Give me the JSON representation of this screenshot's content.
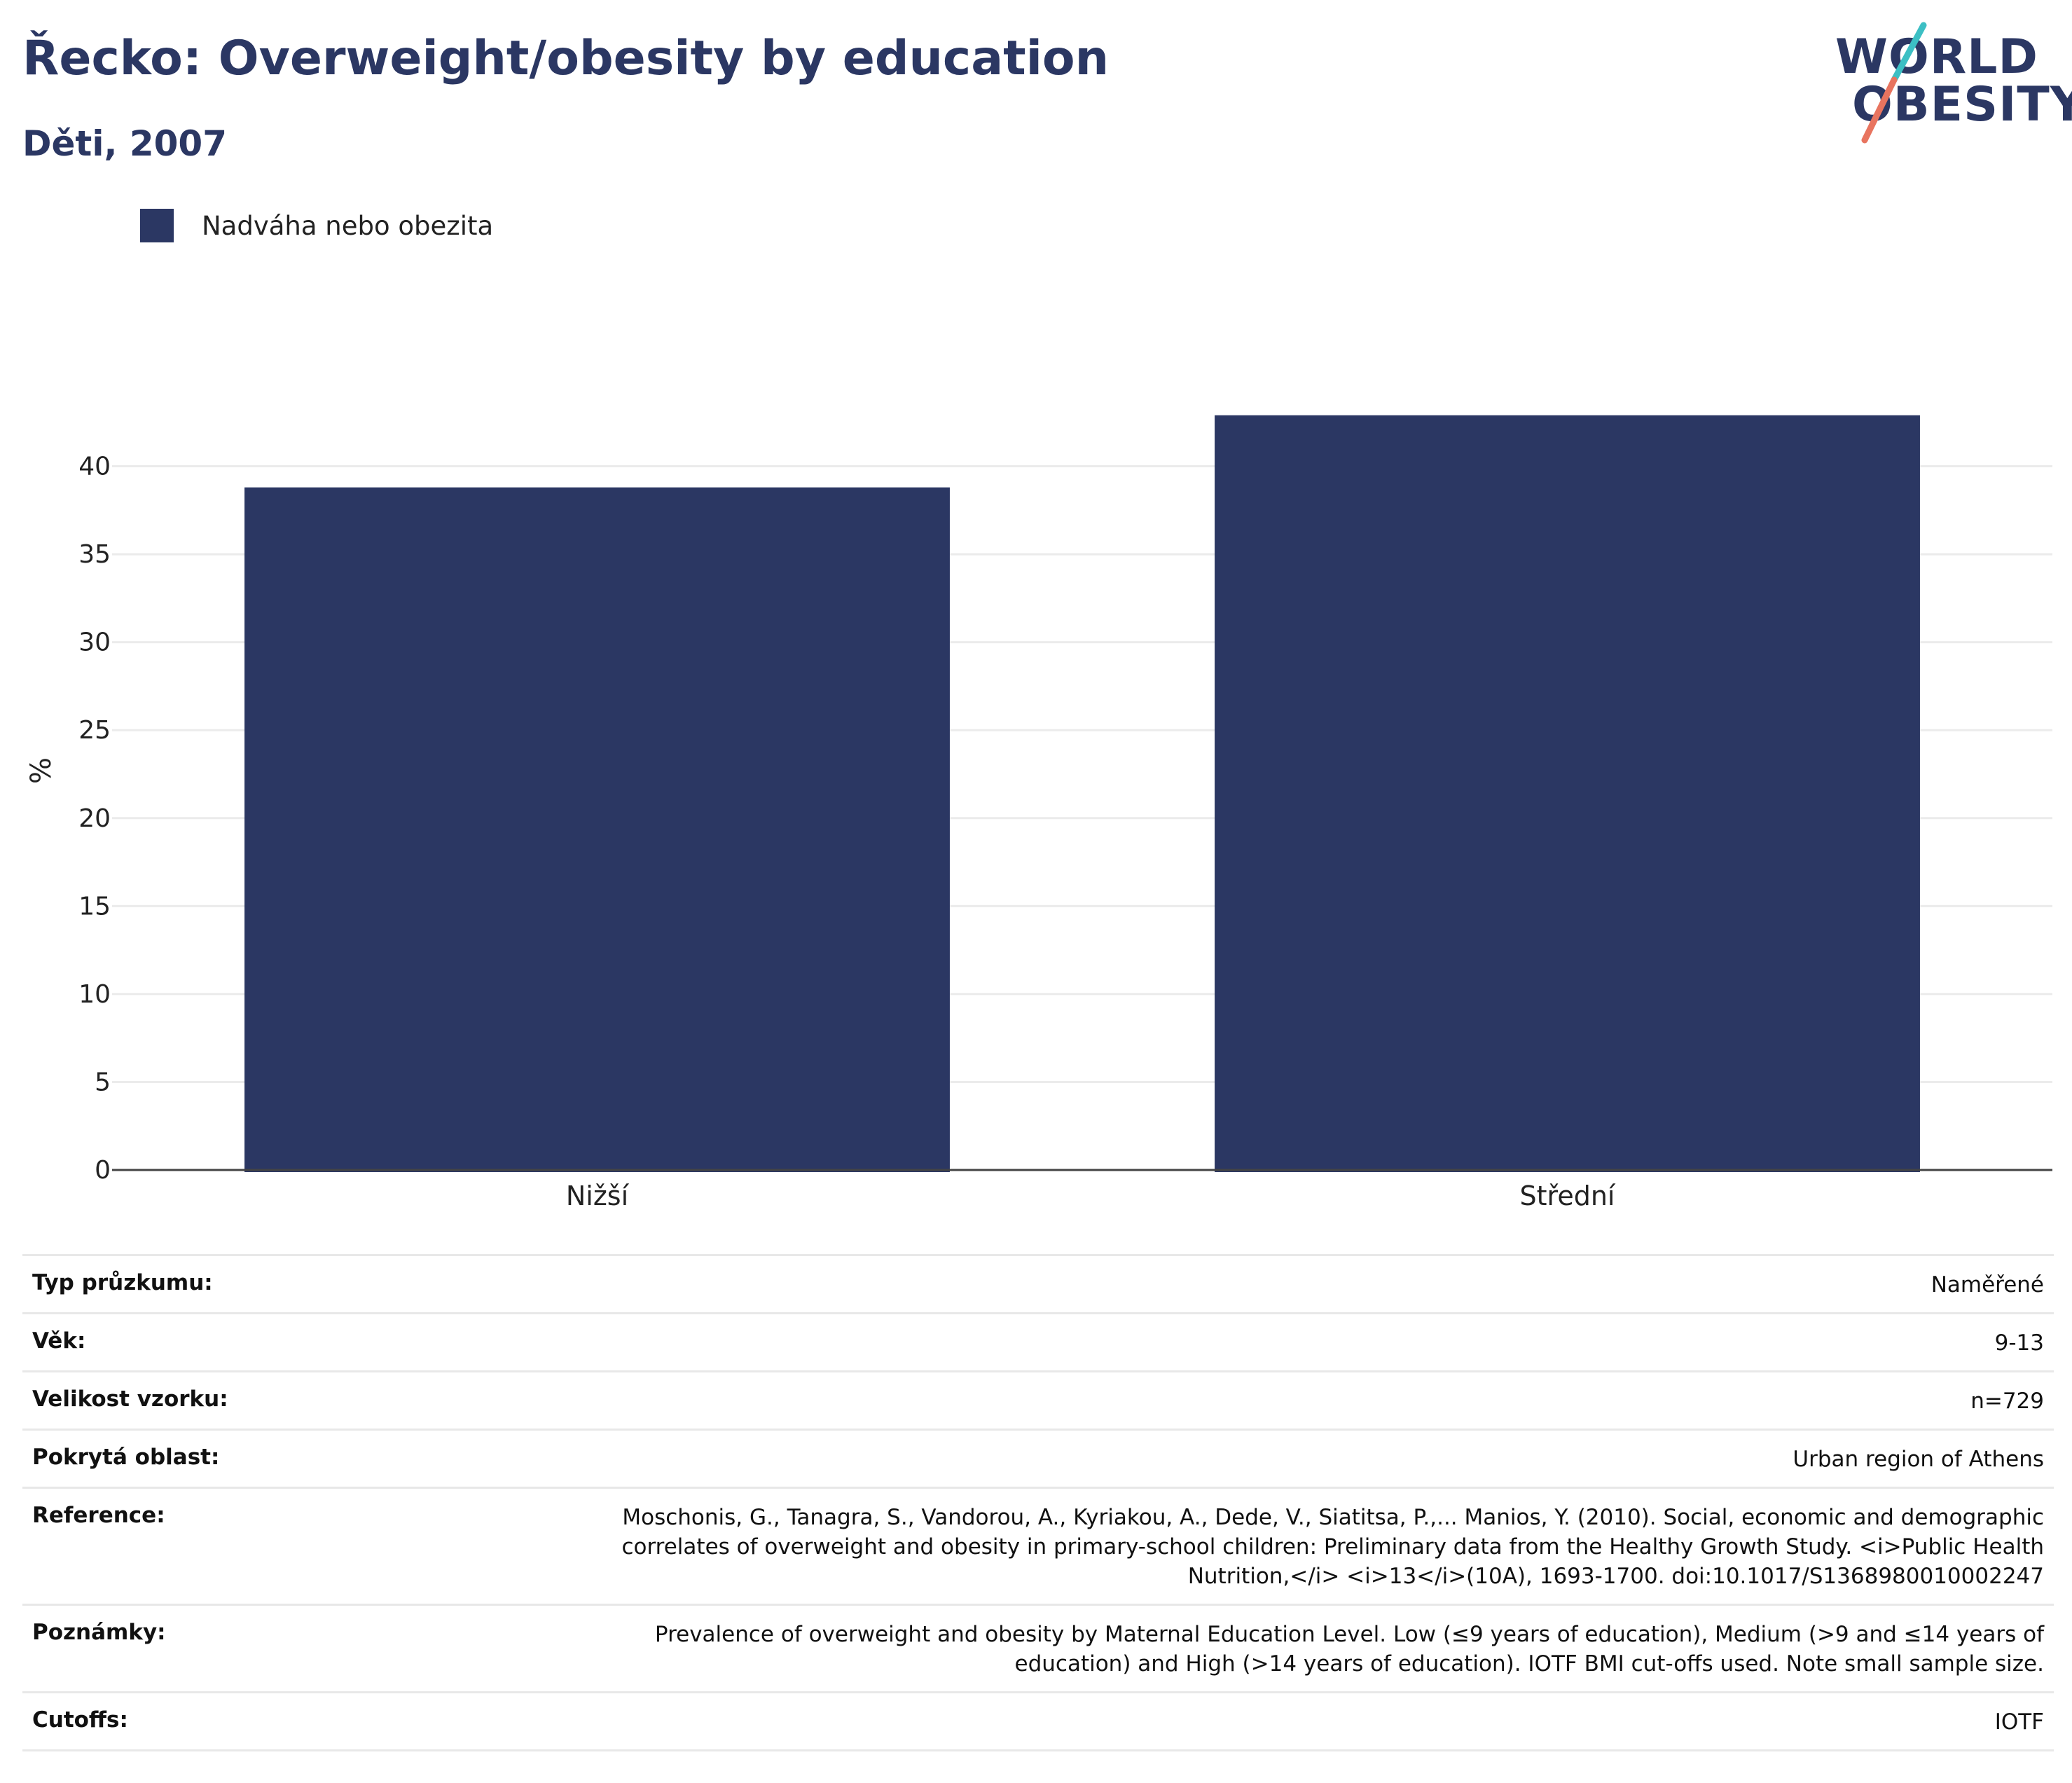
{
  "header": {
    "title": "Řecko: Overweight/obesity by education",
    "subtitle": "Děti, 2007",
    "logo_line1": "WORLD",
    "logo_line2": "OBESITY"
  },
  "legend": {
    "label": "Nadváha nebo obezita"
  },
  "colors": {
    "bar": "#2b3763",
    "accent_teal": "#3cbfc4",
    "accent_coral": "#e8745f"
  },
  "chart_data": {
    "type": "bar",
    "categories": [
      "Nižší",
      "Střední"
    ],
    "series": [
      {
        "name": "Nadváha nebo obezita",
        "values": [
          38.8,
          42.9
        ]
      }
    ],
    "ylabel": "%",
    "xlabel": "",
    "ylim": [
      0,
      45
    ],
    "yticks": [
      0,
      5,
      10,
      15,
      20,
      25,
      30,
      35,
      40
    ],
    "grid": true,
    "legend_position": "top-left"
  },
  "meta": [
    {
      "key": "Typ průzkumu:",
      "value": "Naměřené"
    },
    {
      "key": "Věk:",
      "value": "9-13"
    },
    {
      "key": "Velikost vzorku:",
      "value": "n=729"
    },
    {
      "key": "Pokrytá oblast:",
      "value": "Urban region of Athens"
    },
    {
      "key": "Reference:",
      "value": "Moschonis, G., Tanagra, S., Vandorou, A., Kyriakou, A., Dede, V., Siatitsa, P.,... Manios, Y. (2010). Social, economic and demographic correlates of overweight and obesity in primary-school children: Preliminary data from the Healthy Growth Study. <i>Public Health Nutrition,</i> <i>13</i>(10A), 1693-1700. doi:10.1017/S1368980010002247"
    },
    {
      "key": "Poznámky:",
      "value": "Prevalence of overweight and obesity by Maternal Education Level. Low (≤9 years of education), Medium (>9 and ≤14 years of education) and High (>14 years of education). IOTF BMI cut-offs used. Note small sample size."
    },
    {
      "key": "Cutoffs:",
      "value": "IOTF"
    }
  ]
}
